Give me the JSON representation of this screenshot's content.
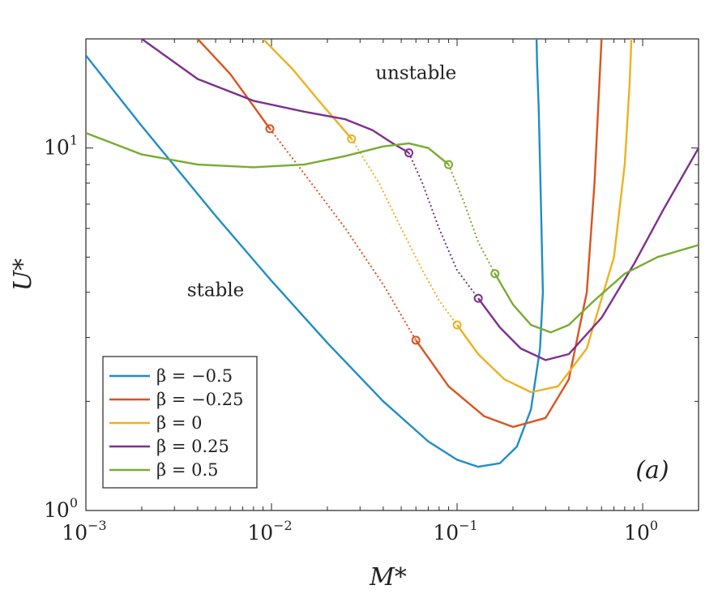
{
  "chart_data": {
    "type": "line",
    "xlabel": "M*",
    "ylabel": "U*",
    "x_scale": "log",
    "y_scale": "log",
    "xlim": [
      0.001,
      2
    ],
    "ylim": [
      1,
      20
    ],
    "x_ticks": [
      {
        "value": 0.001,
        "base": "10",
        "exp": "−3"
      },
      {
        "value": 0.01,
        "base": "10",
        "exp": "−2"
      },
      {
        "value": 0.1,
        "base": "10",
        "exp": "−1"
      },
      {
        "value": 1,
        "base": "10",
        "exp": "0"
      }
    ],
    "y_ticks": [
      {
        "value": 1,
        "base": "10",
        "exp": "0"
      },
      {
        "value": 10,
        "base": "10",
        "exp": "1"
      }
    ],
    "annotations": {
      "unstable": {
        "text": "unstable",
        "x": 0.06,
        "y": 15.5
      },
      "stable": {
        "text": "stable",
        "x": 0.005,
        "y": 3.9
      },
      "panel": "(a)"
    },
    "legend": {
      "placement": "bottom-left"
    },
    "series": [
      {
        "name": "β = −0.5",
        "legend_label": "β = −0.5",
        "color": "#1f8dc7",
        "x": [
          0.001,
          0.002,
          0.005,
          0.01,
          0.02,
          0.04,
          0.07,
          0.1,
          0.13,
          0.17,
          0.21,
          0.25,
          0.28,
          0.29,
          0.285,
          0.28,
          0.275,
          0.27,
          0.268
        ],
        "y": [
          18,
          11.5,
          6.5,
          4.3,
          2.9,
          2.0,
          1.55,
          1.38,
          1.32,
          1.35,
          1.5,
          1.9,
          2.8,
          4.0,
          6.0,
          9.0,
          13.0,
          17.0,
          20.0
        ],
        "markers": [],
        "dotted_segment": null
      },
      {
        "name": "β = −0.25",
        "legend_label": "β = −0.25",
        "color": "#d9541e",
        "x": [
          0.004,
          0.006,
          0.0098,
          0.015,
          0.025,
          0.04,
          0.06,
          0.09,
          0.14,
          0.2,
          0.3,
          0.4,
          0.5,
          0.55,
          0.58,
          0.6
        ],
        "y": [
          20,
          16,
          11.3,
          8.5,
          6.0,
          4.2,
          2.95,
          2.2,
          1.82,
          1.7,
          1.8,
          2.3,
          4.0,
          8.0,
          14.0,
          20.0
        ],
        "markers": [
          {
            "x": 0.0098,
            "y": 11.3
          },
          {
            "x": 0.06,
            "y": 2.95
          }
        ],
        "dotted_segment": [
          0.0098,
          0.06
        ]
      },
      {
        "name": "β = 0",
        "legend_label": "β = 0",
        "color": "#edb120",
        "x": [
          0.009,
          0.013,
          0.018,
          0.027,
          0.038,
          0.05,
          0.065,
          0.08,
          0.1,
          0.13,
          0.18,
          0.25,
          0.35,
          0.5,
          0.7,
          0.8,
          0.85,
          0.87
        ],
        "y": [
          20,
          16.5,
          13.5,
          10.6,
          8.0,
          6.0,
          4.6,
          3.8,
          3.25,
          2.7,
          2.3,
          2.12,
          2.2,
          2.8,
          5.0,
          9.0,
          15.0,
          20.0
        ],
        "markers": [
          {
            "x": 0.027,
            "y": 10.6
          },
          {
            "x": 0.1,
            "y": 3.25
          }
        ],
        "dotted_segment": [
          0.027,
          0.1
        ]
      },
      {
        "name": "β = 0.25",
        "legend_label": "β = 0.25",
        "color": "#7e2f8e",
        "x": [
          0.002,
          0.004,
          0.008,
          0.015,
          0.025,
          0.035,
          0.045,
          0.055,
          0.065,
          0.08,
          0.1,
          0.13,
          0.17,
          0.22,
          0.3,
          0.4,
          0.6,
          0.9,
          1.3,
          2.0
        ],
        "y": [
          20,
          15.5,
          13.5,
          12.6,
          12.0,
          11.2,
          10.3,
          9.7,
          8.0,
          6.0,
          4.6,
          3.85,
          3.2,
          2.8,
          2.6,
          2.7,
          3.4,
          4.8,
          6.8,
          10.0
        ],
        "markers": [
          {
            "x": 0.055,
            "y": 9.7
          },
          {
            "x": 0.13,
            "y": 3.85
          }
        ],
        "dotted_segment": [
          0.055,
          0.13
        ]
      },
      {
        "name": "β = 0.5",
        "legend_label": "β = 0.5",
        "color": "#77ac30",
        "x": [
          0.001,
          0.002,
          0.004,
          0.008,
          0.015,
          0.025,
          0.04,
          0.055,
          0.07,
          0.09,
          0.11,
          0.13,
          0.16,
          0.2,
          0.25,
          0.32,
          0.4,
          0.55,
          0.8,
          1.2,
          2.0
        ],
        "y": [
          11.0,
          9.6,
          9.0,
          8.85,
          9.0,
          9.5,
          10.1,
          10.3,
          10.0,
          9.0,
          7.0,
          5.5,
          4.5,
          3.7,
          3.25,
          3.1,
          3.25,
          3.8,
          4.5,
          5.0,
          5.4
        ],
        "markers": [
          {
            "x": 0.09,
            "y": 9.0
          },
          {
            "x": 0.16,
            "y": 4.5
          }
        ],
        "dotted_segment": [
          0.09,
          0.16
        ]
      }
    ]
  }
}
